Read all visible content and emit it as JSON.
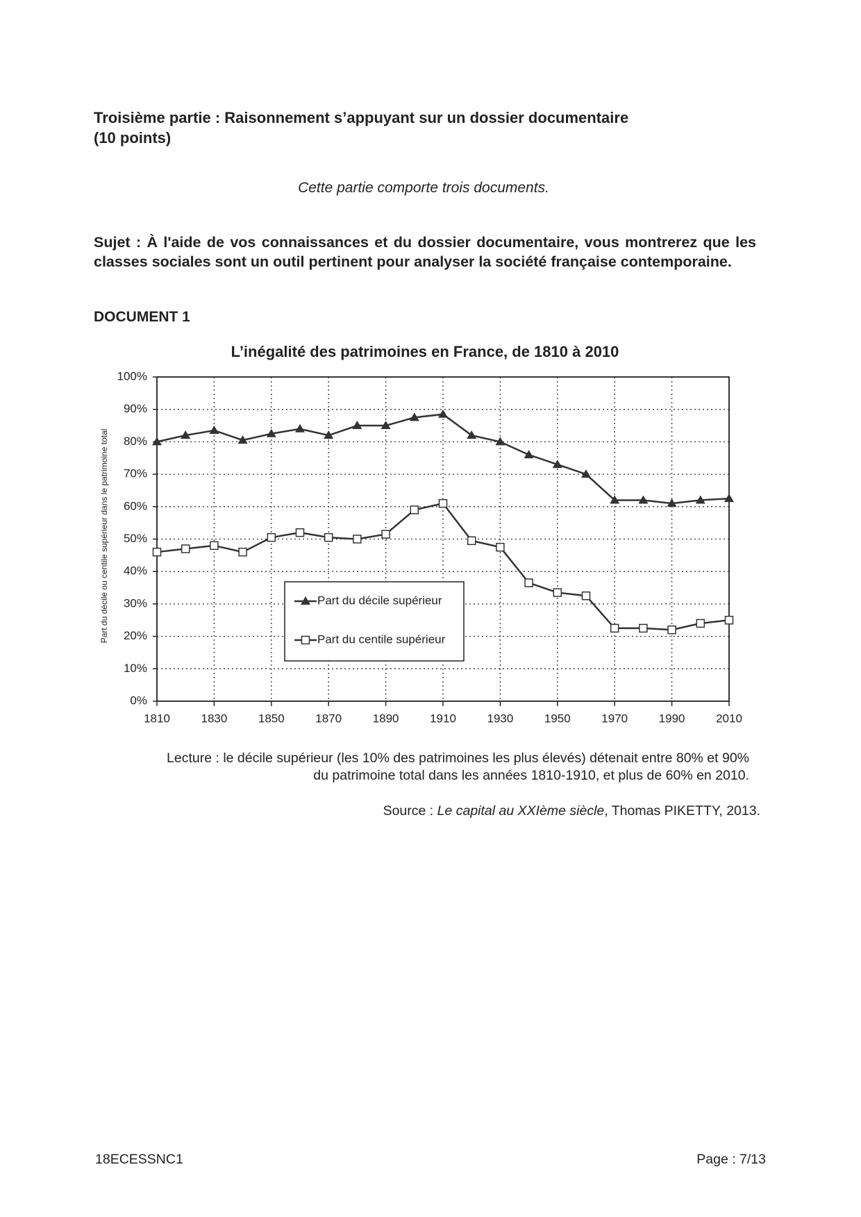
{
  "header": {
    "title": "Troisième partie : Raisonnement s’appuyant sur un dossier documentaire",
    "points": "(10 points)"
  },
  "intro": "Cette partie comporte trois documents.",
  "subject": "Sujet : À l'aide de vos connaissances et du dossier documentaire, vous montrerez que les classes sociales sont un outil pertinent pour analyser la société française contemporaine.",
  "document_label": "DOCUMENT 1",
  "chart_data": {
    "type": "line",
    "title": "L’inégalité des patrimoines en France, de 1810 à 2010",
    "y_label": "Part du décile ou centile supérieur dans le patrimoine total",
    "x": [
      1810,
      1820,
      1830,
      1840,
      1850,
      1860,
      1870,
      1880,
      1890,
      1900,
      1910,
      1920,
      1930,
      1940,
      1950,
      1960,
      1970,
      1980,
      1990,
      2000,
      2010
    ],
    "series": [
      {
        "name": "Part du décile supérieur",
        "color": "#333333",
        "marker": "triangle",
        "values": [
          80,
          82,
          83.5,
          80.5,
          82.5,
          84,
          82,
          85,
          85,
          87.5,
          88.5,
          82,
          80,
          76,
          73,
          70,
          62,
          62,
          61,
          62,
          62.5
        ]
      },
      {
        "name": "Part du centile supérieur",
        "color": "#333333",
        "marker": "square",
        "values": [
          46,
          47,
          48,
          46,
          50.5,
          52,
          50.5,
          50,
          51.5,
          59,
          61,
          49.5,
          47.5,
          36.5,
          33.5,
          32.5,
          22.5,
          22.5,
          22,
          24,
          25
        ]
      }
    ],
    "xlim": [
      1810,
      2010
    ],
    "xticks": [
      1810,
      1830,
      1850,
      1870,
      1890,
      1910,
      1930,
      1950,
      1970,
      1990,
      2010
    ],
    "ylim": [
      0,
      100
    ],
    "yticks": [
      {
        "value": 0,
        "label": "0%"
      },
      {
        "value": 10,
        "label": "10%"
      },
      {
        "value": 20,
        "label": "20%"
      },
      {
        "value": 30,
        "label": "30%"
      },
      {
        "value": 40,
        "label": "40%"
      },
      {
        "value": 50,
        "label": "50%"
      },
      {
        "value": 60,
        "label": "60%"
      },
      {
        "value": 70,
        "label": "70%"
      },
      {
        "value": 80,
        "label": "80%"
      },
      {
        "value": 90,
        "label": "90%"
      },
      {
        "value": 100,
        "label": "100%"
      }
    ],
    "grid": true
  },
  "reading": {
    "line1": "Lecture : le décile supérieur (les 10% des patrimoines les plus élevés) détenait entre 80% et 90%",
    "line2": "du patrimoine total dans les années 1810-1910, et plus de 60% en 2010."
  },
  "source": {
    "prefix": "Source : ",
    "work": "Le capital au XXIème siècle",
    "rest": ", Thomas PIKETTY, 2013."
  },
  "footer": {
    "code": "18ECESSNC1",
    "page": "Page : 7/13"
  }
}
